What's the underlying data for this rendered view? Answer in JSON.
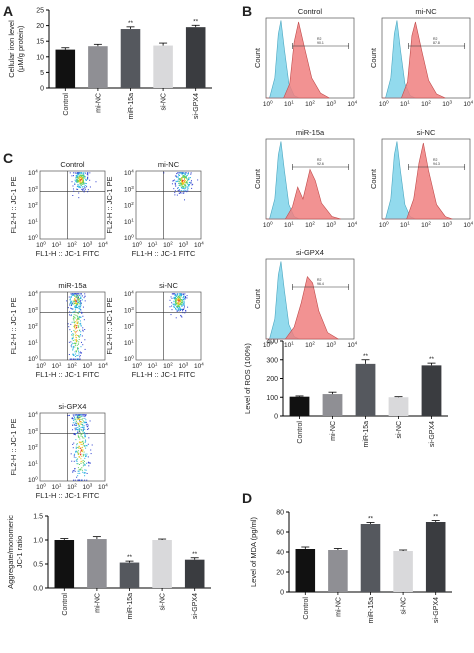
{
  "panel_letters": {
    "a": "A",
    "b": "B",
    "c": "C",
    "d": "D"
  },
  "bar_colors": {
    "Control": "#111111",
    "mi-NC": "#8f8f94",
    "miR-15a": "#55585e",
    "si-NC": "#d9d9db",
    "si-GPX4": "#3a3c40"
  },
  "chart_data": [
    {
      "panel": "A",
      "type": "bar",
      "categories": [
        "Control",
        "mi-NC",
        "miR-15a",
        "si-NC",
        "si-GPX4"
      ],
      "values": [
        12.3,
        13.4,
        18.9,
        13.6,
        19.5
      ],
      "errors": [
        0.6,
        0.6,
        0.7,
        0.8,
        0.6
      ],
      "annotations": [
        "",
        "",
        "**",
        "",
        "**"
      ],
      "ylabel": "Cellular iron level\n(μM/g protein)",
      "ylim": [
        0,
        25
      ],
      "yticks": [
        0,
        5,
        10,
        15,
        20,
        25
      ]
    },
    {
      "panel": "B",
      "type": "bar",
      "categories": [
        "Control",
        "mi-NC",
        "miR-15a",
        "si-NC",
        "si-GPX4"
      ],
      "values": [
        103,
        117,
        278,
        100,
        270
      ],
      "errors": [
        4,
        10,
        22,
        3,
        12
      ],
      "annotations": [
        "",
        "",
        "**",
        "",
        "**"
      ],
      "ylabel": "Level of ROS (100%)",
      "ylim": [
        0,
        400
      ],
      "yticks": [
        0,
        100,
        200,
        300,
        400
      ]
    },
    {
      "panel": "C",
      "type": "bar",
      "categories": [
        "Control",
        "mi-NC",
        "miR-15a",
        "si-NC",
        "si-GPX4"
      ],
      "values": [
        1.0,
        1.02,
        0.53,
        1.0,
        0.59
      ],
      "errors": [
        0.03,
        0.05,
        0.03,
        0.02,
        0.04
      ],
      "annotations": [
        "",
        "",
        "**",
        "",
        "**"
      ],
      "ylabel": "Aggregate/monomeric\nJC-1 ratio",
      "ylim": [
        0,
        1.5
      ],
      "yticks": [
        0.0,
        0.5,
        1.0,
        1.5
      ],
      "tick_decimals": 1
    },
    {
      "panel": "D",
      "type": "bar",
      "categories": [
        "Control",
        "mi-NC",
        "miR-15a",
        "si-NC",
        "si-GPX4"
      ],
      "values": [
        43,
        42,
        68,
        41,
        70
      ],
      "errors": [
        2,
        1.5,
        1.5,
        1,
        1.5
      ],
      "annotations": [
        "",
        "",
        "**",
        "",
        "**"
      ],
      "ylabel": "Level of MDA (pg/ml)",
      "ylim": [
        0,
        80
      ],
      "yticks": [
        0,
        20,
        40,
        60,
        80
      ]
    }
  ],
  "histograms": {
    "xlabel_ticks": [
      "10",
      "10",
      "10",
      "10",
      "10"
    ],
    "xlabel_exp": [
      "0",
      "1",
      "2",
      "3",
      "4"
    ],
    "ylabel": "Count",
    "gate_label": "R2",
    "control_color": "#7fd4ea",
    "sample_color": "#f07f7f",
    "panels": [
      {
        "title": "Control",
        "gate_value": "90.1"
      },
      {
        "title": "mi-NC",
        "gate_value": "87.8"
      },
      {
        "title": "miR-15a",
        "gate_value": "92.6"
      },
      {
        "title": "si-NC",
        "gate_value": "94.3"
      },
      {
        "title": "si-GPX4",
        "gate_value": "96.4"
      }
    ]
  },
  "scatter_plots": {
    "ylabel": "FL2-H :: JC-1 PE",
    "xlabel": "FL1-H :: JC-1 FITC",
    "tick_exps": [
      "0",
      "1",
      "2",
      "3",
      "4"
    ],
    "tick_base": "10",
    "panels": [
      {
        "title": "Control"
      },
      {
        "title": "mi-NC"
      },
      {
        "title": "miR-15a"
      },
      {
        "title": "si-NC"
      },
      {
        "title": "si-GPX4"
      }
    ]
  }
}
